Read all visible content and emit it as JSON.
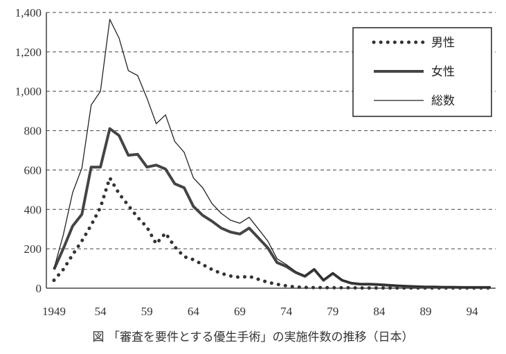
{
  "chart_data": {
    "type": "line",
    "title": "",
    "caption": "図 「審査を要件とする優生手術」の実施件数の推移（日本）",
    "xlabel": "",
    "ylabel": "",
    "xlim": [
      1949,
      1996
    ],
    "ylim": [
      0,
      1400
    ],
    "grid": "horizontal dashed",
    "legend_position": "top-right",
    "x_tick_labels": [
      "1949",
      "54",
      "59",
      "64",
      "69",
      "74",
      "79",
      "84",
      "89",
      "94"
    ],
    "x_tick_values": [
      1949,
      1954,
      1959,
      1964,
      1969,
      1974,
      1979,
      1984,
      1989,
      1994
    ],
    "y_tick_labels": [
      "0",
      "200",
      "400",
      "600",
      "800",
      "1,000",
      "1,200",
      "1,400"
    ],
    "y_tick_values": [
      0,
      200,
      400,
      600,
      800,
      1000,
      1200,
      1400
    ],
    "x": [
      1949,
      1950,
      1951,
      1952,
      1953,
      1954,
      1955,
      1956,
      1957,
      1958,
      1959,
      1960,
      1961,
      1962,
      1963,
      1964,
      1965,
      1966,
      1967,
      1968,
      1969,
      1970,
      1971,
      1972,
      1973,
      1974,
      1975,
      1976,
      1977,
      1978,
      1979,
      1980,
      1981,
      1982,
      1983,
      1984,
      1985,
      1986,
      1987,
      1988,
      1989,
      1990,
      1991,
      1992,
      1993,
      1994,
      1995,
      1996
    ],
    "series": [
      {
        "name": "男性",
        "style": "dotted",
        "values": [
          40,
          95,
          170,
          240,
          320,
          410,
          560,
          480,
          420,
          360,
          310,
          225,
          280,
          210,
          160,
          145,
          120,
          95,
          75,
          62,
          55,
          60,
          45,
          30,
          20,
          12,
          6,
          4,
          3,
          3,
          2,
          2,
          2,
          1,
          1,
          1,
          1,
          1,
          1,
          1,
          1,
          1,
          1,
          1,
          1,
          1,
          1,
          1
        ]
      },
      {
        "name": "女性",
        "style": "thick",
        "values": [
          95,
          200,
          315,
          375,
          615,
          615,
          810,
          775,
          675,
          680,
          615,
          625,
          605,
          530,
          510,
          415,
          370,
          340,
          305,
          285,
          275,
          305,
          255,
          205,
          130,
          110,
          80,
          60,
          95,
          40,
          75,
          40,
          25,
          20,
          20,
          18,
          15,
          12,
          10,
          8,
          6,
          6,
          5,
          5,
          4,
          4,
          4,
          4
        ]
      },
      {
        "name": "総数",
        "style": "thin",
        "values": [
          100,
          270,
          485,
          610,
          930,
          1000,
          1365,
          1270,
          1105,
          1080,
          965,
          835,
          880,
          745,
          690,
          560,
          510,
          430,
          380,
          345,
          330,
          360,
          300,
          240,
          150,
          120,
          85,
          62,
          98,
          42,
          78,
          42,
          27,
          21,
          21,
          19,
          16,
          13,
          11,
          9,
          7,
          7,
          6,
          6,
          5,
          5,
          5,
          5
        ]
      }
    ]
  }
}
